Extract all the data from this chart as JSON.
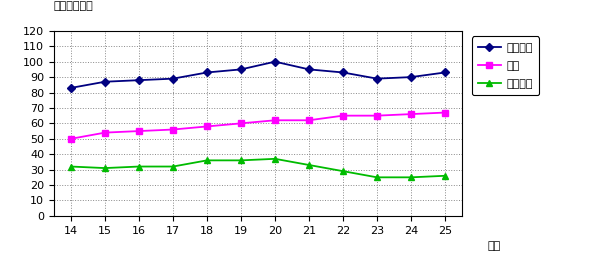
{
  "x": [
    14,
    15,
    16,
    17,
    18,
    19,
    20,
    21,
    22,
    23,
    24,
    25
  ],
  "全輸送量": [
    83,
    87,
    88,
    89,
    93,
    95,
    100,
    95,
    93,
    89,
    90,
    93
  ],
  "幹線": [
    50,
    54,
    55,
    56,
    58,
    60,
    62,
    62,
    65,
    65,
    66,
    67
  ],
  "ローカル": [
    32,
    31,
    32,
    32,
    36,
    36,
    37,
    33,
    29,
    25,
    25,
    26
  ],
  "line_colors": [
    "#000080",
    "#ff00ff",
    "#00bb00"
  ],
  "markers": [
    "D",
    "s",
    "^"
  ],
  "legend_labels": [
    "全輸送量",
    "幹線",
    "ローカル"
  ],
  "ylabel_text": "単位：万トン",
  "xlabel_text": "年度",
  "ylim": [
    0,
    120
  ],
  "yticks": [
    0,
    10,
    20,
    30,
    40,
    50,
    60,
    70,
    80,
    90,
    100,
    110,
    120
  ],
  "background_color": "#ffffff",
  "grid_color": "#888888",
  "axis_fontsize": 8,
  "legend_fontsize": 8,
  "label_fontsize": 8
}
